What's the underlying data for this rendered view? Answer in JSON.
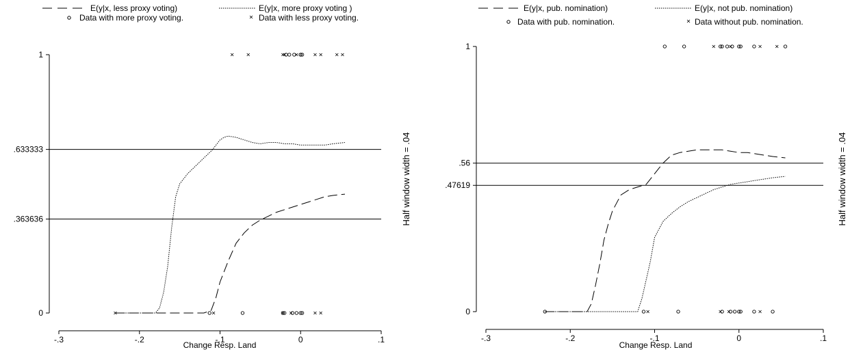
{
  "chart_data": [
    {
      "type": "line",
      "xlabel": "Change Resp. Land",
      "side_note": "Half window width = .04",
      "xlim": [
        -0.3,
        0.1
      ],
      "ylim": [
        0,
        1
      ],
      "x_ticks": [
        {
          "value": -0.3,
          "label": "-.3"
        },
        {
          "value": -0.2,
          "label": "-.2"
        },
        {
          "value": -0.1,
          "label": "-.1"
        },
        {
          "value": 0,
          "label": "0"
        },
        {
          "value": 0.1,
          "label": ".1"
        }
      ],
      "y_ticks": [
        {
          "value": 0,
          "label": "0"
        },
        {
          "value": 0.363636,
          "label": ".363636"
        },
        {
          "value": 0.633333,
          "label": ".633333"
        },
        {
          "value": 1,
          "label": "1"
        }
      ],
      "reference_lines": [
        0.633333,
        0.363636
      ],
      "series": [
        {
          "name": "E(y|x, less proxy voting)",
          "style": "longdash",
          "x": [
            -0.23,
            -0.2,
            -0.15,
            -0.12,
            -0.111,
            -0.105,
            -0.1,
            -0.09,
            -0.08,
            -0.07,
            -0.06,
            -0.05,
            -0.04,
            -0.03,
            -0.02,
            -0.01,
            0,
            0.01,
            0.02,
            0.03,
            0.04,
            0.055
          ],
          "y": [
            0,
            0,
            0,
            0,
            0.01,
            0.06,
            0.12,
            0.2,
            0.27,
            0.31,
            0.34,
            0.36,
            0.375,
            0.39,
            0.4,
            0.41,
            0.42,
            0.43,
            0.44,
            0.45,
            0.455,
            0.46
          ]
        },
        {
          "name": "E(y|x, more proxy voting )",
          "style": "dotted",
          "x": [
            -0.23,
            -0.18,
            -0.175,
            -0.17,
            -0.165,
            -0.16,
            -0.155,
            -0.15,
            -0.14,
            -0.13,
            -0.12,
            -0.11,
            -0.1,
            -0.095,
            -0.09,
            -0.08,
            -0.07,
            -0.06,
            -0.05,
            -0.04,
            -0.03,
            -0.02,
            -0.01,
            0,
            0.01,
            0.02,
            0.03,
            0.04,
            0.055
          ],
          "y": [
            0,
            0,
            0.02,
            0.08,
            0.18,
            0.33,
            0.45,
            0.5,
            0.54,
            0.57,
            0.6,
            0.63,
            0.67,
            0.68,
            0.685,
            0.68,
            0.67,
            0.66,
            0.655,
            0.66,
            0.66,
            0.655,
            0.655,
            0.65,
            0.65,
            0.65,
            0.65,
            0.655,
            0.66
          ]
        },
        {
          "name": "Data with more proxy voting.",
          "style": "circle",
          "x": [
            -0.113,
            -0.072,
            -0.022,
            -0.02,
            -0.01,
            -0.005,
            0.0,
            0.002,
            -0.018,
            -0.014,
            -0.008,
            0.0,
            0.0,
            0.002
          ],
          "y": [
            0,
            0,
            0,
            0,
            0,
            0,
            0,
            0,
            1,
            1,
            1,
            1,
            1,
            1
          ]
        },
        {
          "name": "Data with less proxy voting.",
          "style": "cross",
          "x": [
            -0.23,
            -0.108,
            -0.022,
            -0.012,
            0.018,
            0.025,
            -0.085,
            -0.065,
            -0.022,
            -0.02,
            -0.005,
            0.018,
            0.025,
            0.045,
            0.052
          ],
          "y": [
            0,
            0,
            0,
            0,
            0,
            0,
            1,
            1,
            1,
            1,
            1,
            1,
            1,
            1,
            1
          ]
        }
      ]
    },
    {
      "type": "line",
      "xlabel": "Change Resp. Land",
      "side_note": "Half window width = .04",
      "xlim": [
        -0.3,
        0.1
      ],
      "ylim": [
        0,
        1
      ],
      "x_ticks": [
        {
          "value": -0.3,
          "label": "-.3"
        },
        {
          "value": -0.2,
          "label": "-.2"
        },
        {
          "value": -0.1,
          "label": "-.1"
        },
        {
          "value": 0,
          "label": "0"
        },
        {
          "value": 0.1,
          "label": ".1"
        }
      ],
      "y_ticks": [
        {
          "value": 0,
          "label": "0"
        },
        {
          "value": 0.47619,
          "label": ".47619"
        },
        {
          "value": 0.56,
          "label": ".56"
        },
        {
          "value": 1,
          "label": "1"
        }
      ],
      "reference_lines": [
        0.56,
        0.47619
      ],
      "series": [
        {
          "name": "E(y|x, pub. nomination)",
          "style": "longdash",
          "x": [
            -0.23,
            -0.2,
            -0.18,
            -0.175,
            -0.17,
            -0.165,
            -0.16,
            -0.155,
            -0.15,
            -0.14,
            -0.13,
            -0.12,
            -0.11,
            -0.1,
            -0.09,
            -0.08,
            -0.07,
            -0.06,
            -0.05,
            -0.04,
            -0.03,
            -0.02,
            -0.01,
            0,
            0.01,
            0.02,
            0.03,
            0.04,
            0.055
          ],
          "y": [
            0,
            0,
            0,
            0.03,
            0.1,
            0.18,
            0.27,
            0.33,
            0.38,
            0.44,
            0.46,
            0.47,
            0.48,
            0.52,
            0.56,
            0.59,
            0.6,
            0.605,
            0.61,
            0.61,
            0.61,
            0.61,
            0.605,
            0.6,
            0.6,
            0.595,
            0.59,
            0.585,
            0.58
          ]
        },
        {
          "name": "E(y|x, not pub. nomination)",
          "style": "dotted",
          "x": [
            -0.23,
            -0.2,
            -0.15,
            -0.12,
            -0.115,
            -0.11,
            -0.105,
            -0.1,
            -0.09,
            -0.08,
            -0.07,
            -0.06,
            -0.05,
            -0.04,
            -0.03,
            -0.02,
            -0.01,
            0,
            0.01,
            0.02,
            0.03,
            0.04,
            0.055
          ],
          "y": [
            0,
            0,
            0,
            0,
            0.05,
            0.12,
            0.19,
            0.28,
            0.34,
            0.37,
            0.395,
            0.415,
            0.43,
            0.445,
            0.46,
            0.47,
            0.48,
            0.485,
            0.49,
            0.495,
            0.5,
            0.505,
            0.51
          ]
        },
        {
          "name": "Data with pub. nomination.",
          "style": "circle",
          "x": [
            -0.23,
            -0.113,
            -0.072,
            -0.02,
            -0.01,
            -0.005,
            0.0,
            0.002,
            0.018,
            0.04,
            -0.088,
            -0.065,
            -0.022,
            -0.02,
            -0.014,
            -0.008,
            0.0,
            0.002,
            0.018,
            0.055
          ],
          "y": [
            0,
            0,
            0,
            0,
            0,
            0,
            0,
            0,
            0,
            0,
            1,
            1,
            1,
            1,
            1,
            1,
            1,
            1,
            1,
            1
          ]
        },
        {
          "name": "Data without pub. nomination.",
          "style": "cross",
          "x": [
            -0.108,
            -0.022,
            -0.012,
            0.025,
            -0.03,
            -0.01,
            0.025,
            0.045
          ],
          "y": [
            0,
            0,
            0,
            0,
            1,
            1,
            1,
            1
          ]
        }
      ]
    }
  ]
}
